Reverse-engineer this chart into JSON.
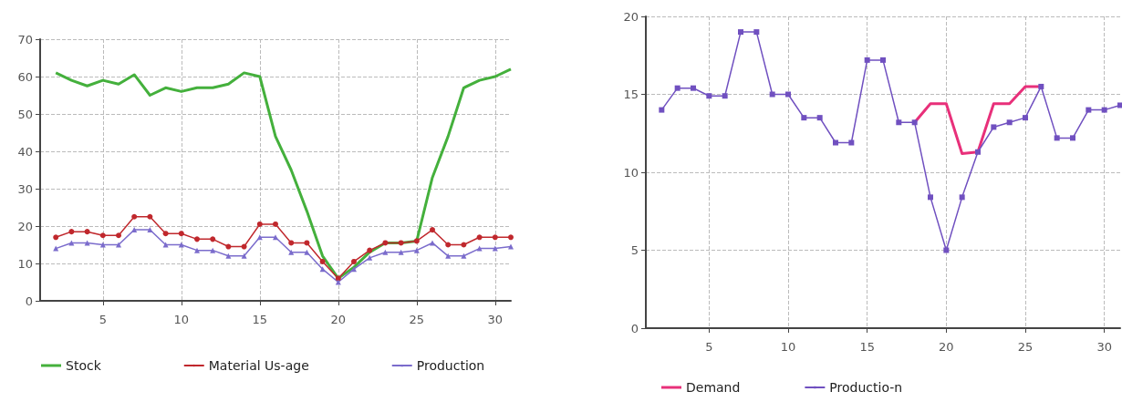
{
  "chart_data": [
    {
      "type": "line",
      "x": [
        2,
        3,
        4,
        5,
        6,
        7,
        8,
        9,
        10,
        11,
        12,
        13,
        14,
        15,
        16,
        17,
        18,
        19,
        20,
        21,
        22,
        23,
        24,
        25,
        26,
        27,
        28,
        29,
        30,
        31
      ],
      "xlim": [
        1,
        31
      ],
      "xticks": [
        5,
        10,
        15,
        20,
        25,
        30
      ],
      "ylim": [
        0,
        70
      ],
      "yticks": [
        0,
        10,
        20,
        30,
        40,
        50,
        60,
        70
      ],
      "grid": true,
      "legend": "bottom",
      "line_style": "solid",
      "series": [
        {
          "name": "Stock",
          "color": "#44b03c",
          "marker": "none",
          "values": [
            61,
            59,
            57.5,
            59,
            58,
            60.5,
            55,
            57,
            56,
            57,
            57,
            58,
            61,
            60,
            44,
            35,
            24,
            12,
            6,
            9,
            13,
            15.5,
            15.5,
            16,
            33,
            44,
            57,
            59,
            60,
            62
          ]
        },
        {
          "name": "Material Us-age",
          "color": "#c0282d",
          "marker": "circle",
          "values": [
            17,
            18.5,
            18.5,
            17.5,
            17.5,
            22.5,
            22.5,
            18,
            18,
            16.5,
            16.5,
            14.5,
            14.5,
            20.5,
            20.5,
            15.5,
            15.5,
            10.5,
            6,
            10.5,
            13.5,
            15.5,
            15.5,
            16,
            19,
            15,
            15,
            17,
            17,
            17
          ]
        },
        {
          "name": "Production",
          "color": "#7b6ccc",
          "marker": "triangle",
          "values": [
            14,
            15.5,
            15.5,
            15,
            15,
            19,
            19,
            15,
            15,
            13.5,
            13.5,
            12,
            12,
            17,
            17,
            13,
            13,
            8.5,
            5,
            8.5,
            11.5,
            13,
            13,
            13.5,
            15.5,
            12,
            12,
            14,
            14,
            14.5
          ]
        }
      ]
    },
    {
      "type": "line",
      "x": [
        2,
        3,
        4,
        5,
        6,
        7,
        8,
        9,
        10,
        11,
        12,
        13,
        14,
        15,
        16,
        17,
        18,
        19,
        20,
        21,
        22,
        23,
        24,
        25,
        26,
        27,
        28,
        29,
        30,
        31
      ],
      "xlim": [
        1,
        31
      ],
      "xticks": [
        5,
        10,
        15,
        20,
        25,
        30
      ],
      "ylim": [
        0,
        20
      ],
      "yticks": [
        0,
        5,
        10,
        15,
        20
      ],
      "grid": true,
      "legend": "bottom",
      "line_style": "solid",
      "series": [
        {
          "name": "Demand",
          "color": "#e8307a",
          "marker": "none",
          "values": [
            null,
            null,
            null,
            null,
            null,
            null,
            null,
            null,
            null,
            null,
            null,
            null,
            null,
            null,
            null,
            null,
            13.2,
            14.4,
            14.4,
            11.2,
            11.3,
            14.4,
            14.4,
            15.5,
            15.5,
            null,
            null,
            null,
            null,
            null
          ]
        },
        {
          "name": "Productio-n",
          "color": "#7050c0",
          "marker": "square",
          "values": [
            14,
            15.4,
            15.4,
            14.9,
            14.9,
            19,
            19,
            15,
            15,
            13.5,
            13.5,
            11.9,
            11.9,
            17.2,
            17.2,
            13.2,
            13.2,
            8.4,
            5,
            8.4,
            11.3,
            12.9,
            13.2,
            13.5,
            15.5,
            12.2,
            12.2,
            14,
            14,
            14.3
          ]
        }
      ]
    }
  ]
}
